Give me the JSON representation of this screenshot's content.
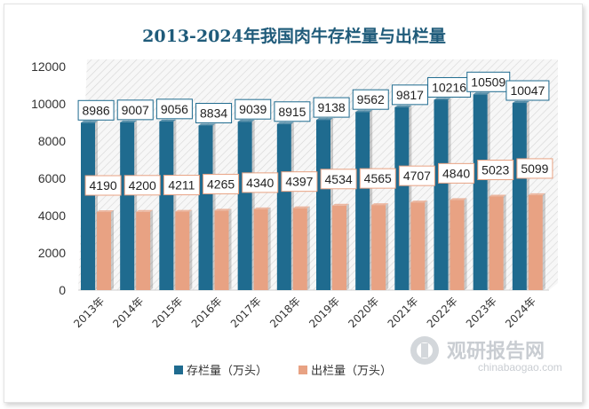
{
  "chart_data": {
    "type": "bar",
    "title": "2013-2024年我国肉牛存栏量与出栏量",
    "categories": [
      "2013年",
      "2014年",
      "2015年",
      "2016年",
      "2017年",
      "2018年",
      "2019年",
      "2020年",
      "2021年",
      "2022年",
      "2023年",
      "2024年"
    ],
    "series": [
      {
        "name": "存栏量（万头）",
        "color": "#1f6b8f",
        "values": [
          8986,
          9007,
          9056,
          8834,
          9039,
          8915,
          9138,
          9562,
          9817,
          10216,
          10509,
          10047
        ]
      },
      {
        "name": "出栏量（万头）",
        "color": "#e8a283",
        "values": [
          4190,
          4200,
          4211,
          4265,
          4340,
          4397,
          4534,
          4565,
          4707,
          4840,
          5023,
          5099
        ]
      }
    ],
    "yticks": [
      0,
      2000,
      4000,
      6000,
      8000,
      10000,
      12000
    ],
    "ylim": [
      0,
      12000
    ],
    "grid": false,
    "legend": "bottom",
    "data_labels": true
  },
  "watermark": {
    "text": "观研报告网",
    "url": "chinabaogao.com"
  }
}
